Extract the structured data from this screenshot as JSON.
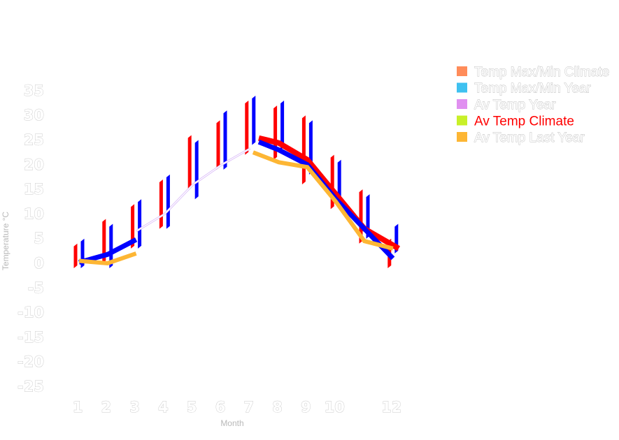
{
  "chart_data": {
    "type": "line",
    "xlabel": "Month",
    "ylabel": "Temperature °C",
    "ylim": [
      -25,
      35
    ],
    "yticks": [
      35,
      30,
      25,
      20,
      15,
      10,
      5,
      0,
      -5,
      -10,
      -15,
      -20,
      -25
    ],
    "xticks": [
      "1",
      "2",
      "3",
      "4",
      "5",
      "6",
      "7",
      "8",
      "9",
      "10",
      "12"
    ],
    "legend_position": "top-right",
    "legend": [
      {
        "label": "Temp Max/Min Climate",
        "color": "#ff8c5a",
        "active": false
      },
      {
        "label": "Temp Max/Min Year",
        "color": "#3fc1f0",
        "active": false
      },
      {
        "label": "Av Temp Year",
        "color": "#e090f0",
        "active": false
      },
      {
        "label": "Av Temp Climate",
        "color": "#c8f028",
        "active": true
      },
      {
        "label": "Av Temp Last Year",
        "color": "#fdb634",
        "active": false
      }
    ],
    "ranges": [
      {
        "name": "Temp Max/Min Climate",
        "color": "#ff0000",
        "x": [
          1,
          2,
          3,
          4,
          5,
          6,
          7,
          8,
          9,
          10,
          11,
          12
        ],
        "min": [
          -1,
          0,
          3,
          7,
          15,
          19,
          22,
          21,
          16,
          11,
          4,
          -1
        ],
        "max": [
          4,
          9,
          12,
          17,
          26,
          29,
          33,
          32,
          30,
          22,
          15,
          5
        ]
      },
      {
        "name": "Temp Max/Min Year",
        "color": "#0000ff",
        "x": [
          1,
          2,
          3,
          4,
          5,
          6,
          7,
          8,
          9,
          10,
          11,
          12
        ],
        "min": [
          -1,
          -1,
          3,
          7,
          13,
          19,
          24,
          23,
          18,
          12,
          5,
          2
        ],
        "max": [
          5,
          8,
          13,
          18,
          25,
          31,
          34,
          33,
          29,
          21,
          14,
          8
        ]
      }
    ],
    "series": [
      {
        "name": "Av Temp Year",
        "color": "#ffffff",
        "outline": "#d8b8f8",
        "x": [
          3,
          4,
          5,
          6,
          7
        ],
        "values": [
          6.5,
          10,
          16,
          20,
          23.3
        ]
      },
      {
        "name": "Av Temp Climate",
        "color": "#ff0000",
        "x": [
          7.3,
          8,
          9,
          10,
          11,
          12.2
        ],
        "values": [
          25.4,
          24.4,
          21,
          14,
          7,
          3
        ]
      },
      {
        "name": "",
        "color": "#0000ff",
        "x": [
          1,
          2,
          3,
          7.3,
          8,
          9,
          10,
          11,
          12
        ],
        "values": [
          0.2,
          1.8,
          4.8,
          24.6,
          23,
          20,
          13,
          7,
          1
        ]
      },
      {
        "name": "Av Temp Last Year",
        "color": "#fdb634",
        "x": [
          1,
          2,
          3,
          7.1,
          8,
          9,
          10,
          11,
          12
        ],
        "values": [
          0.5,
          0,
          2,
          22.5,
          20.5,
          19.5,
          12.5,
          4.5,
          3
        ]
      }
    ]
  }
}
